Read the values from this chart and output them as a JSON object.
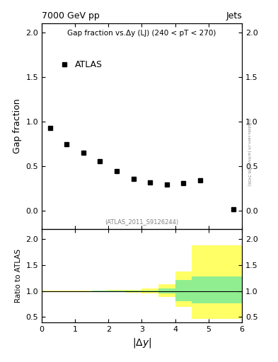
{
  "title_top": "7000 GeV pp",
  "title_right": "Jets",
  "main_title": "Gap fraction vs.Δy (LJ) (240 < pT < 270)",
  "atlas_label": "ATLAS",
  "ref_label": "(ATLAS_2011_S9126244)",
  "ylabel_main": "Gap fraction",
  "ylabel_ratio": "Ratio to ATLAS",
  "xlabel": "|$\\Delta$y|",
  "side_label": "mcplots.cern.ch [arXiv:1306.3436]",
  "data_x": [
    0.25,
    0.75,
    1.25,
    1.75,
    2.25,
    2.75,
    3.25,
    3.75,
    4.25,
    4.75,
    5.75
  ],
  "data_y": [
    0.93,
    0.75,
    0.65,
    0.56,
    0.45,
    0.36,
    0.32,
    0.3,
    0.31,
    0.34,
    0.02
  ],
  "xlim": [
    0,
    6
  ],
  "ylim_main": [
    -0.2,
    2.1
  ],
  "ylim_ratio": [
    0.4,
    2.2
  ],
  "ratio_bin_edges": [
    0.0,
    0.5,
    1.0,
    1.5,
    2.0,
    2.5,
    3.0,
    3.5,
    4.0,
    4.5,
    5.0,
    5.5,
    6.0
  ],
  "ratio_yellow_lo": [
    0.995,
    0.993,
    0.99,
    0.987,
    0.982,
    0.973,
    0.955,
    0.88,
    0.7,
    0.46,
    0.46,
    0.46
  ],
  "ratio_yellow_hi": [
    1.005,
    1.007,
    1.01,
    1.013,
    1.018,
    1.027,
    1.048,
    1.13,
    1.38,
    1.88,
    1.88,
    1.88
  ],
  "ratio_green_lo": [
    0.999,
    0.999,
    0.998,
    0.997,
    0.996,
    0.993,
    0.987,
    0.96,
    0.8,
    0.76,
    0.76,
    0.76
  ],
  "ratio_green_hi": [
    1.001,
    1.001,
    1.002,
    1.003,
    1.004,
    1.007,
    1.014,
    1.05,
    1.22,
    1.28,
    1.28,
    1.28
  ],
  "marker_color": "#000000",
  "marker_style": "s",
  "marker_size": 5,
  "green_color": "#90EE90",
  "yellow_color": "#FFFF66",
  "yticks_main": [
    0.0,
    0.5,
    1.0,
    1.5,
    2.0
  ],
  "yticks_ratio": [
    0.5,
    1.0,
    1.5,
    2.0
  ],
  "xticks": [
    0,
    1,
    2,
    3,
    4,
    5,
    6
  ]
}
